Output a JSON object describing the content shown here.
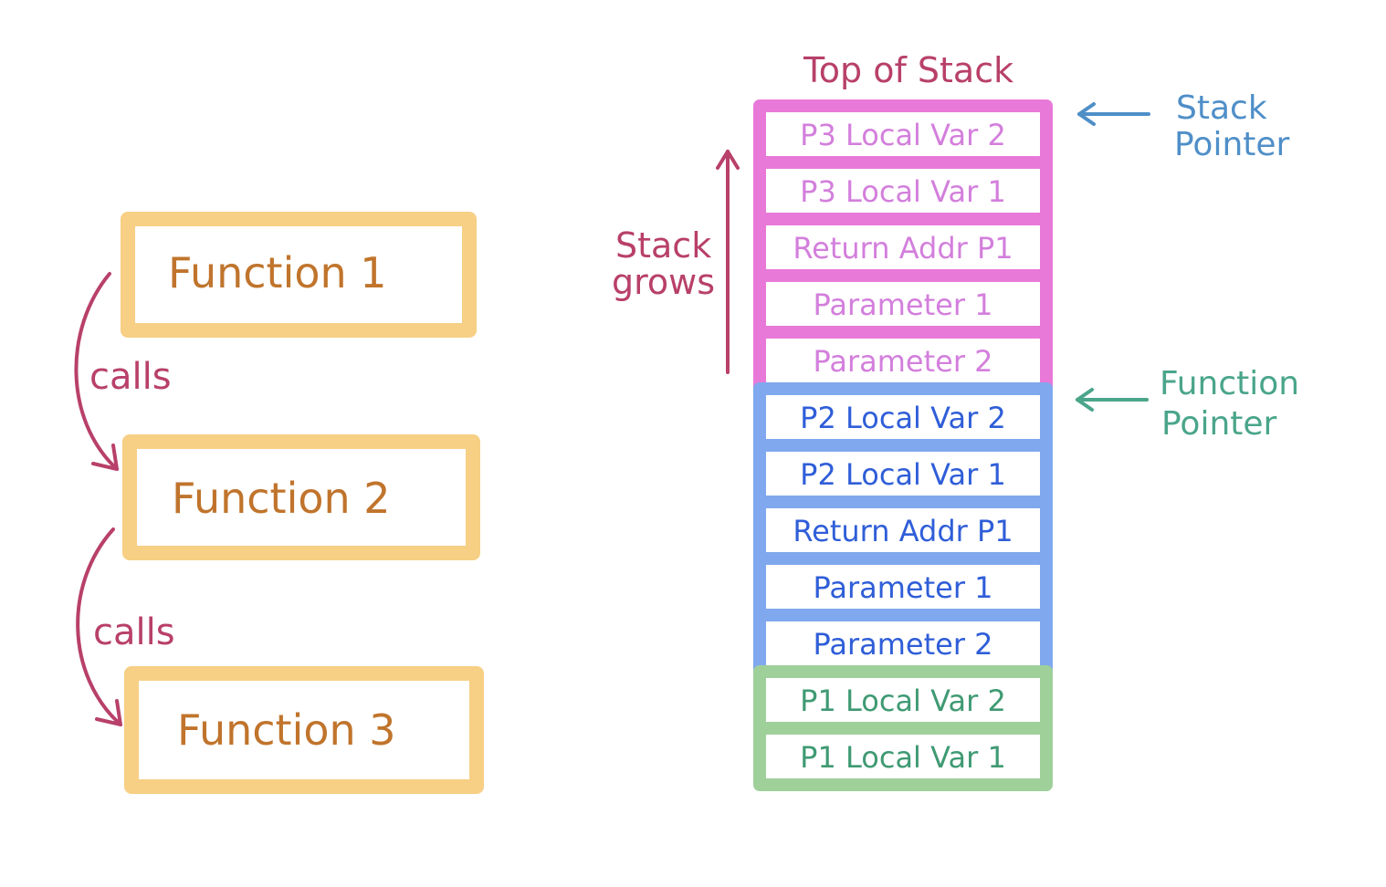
{
  "functions": [
    {
      "label": "Function 1"
    },
    {
      "label": "Function 2"
    },
    {
      "label": "Function 3"
    }
  ],
  "calls": [
    {
      "label": "calls"
    },
    {
      "label": "calls"
    }
  ],
  "stack": {
    "top_label": "Top of Stack",
    "grows_label": [
      "Stack",
      "grows"
    ],
    "frames": [
      {
        "color": "#e879d8",
        "text_color": "#d37fdc",
        "cells": [
          "P3 Local Var 2",
          "P3 Local Var 1",
          "Return Addr P1",
          "Parameter 1",
          "Parameter 2"
        ]
      },
      {
        "color": "#7fa8ee",
        "text_color": "#2f5ed8",
        "cells": [
          "P2 Local Var 2",
          "P2 Local Var 1",
          "Return Addr P1",
          "Parameter 1",
          "Parameter 2"
        ]
      },
      {
        "color": "#9fd09a",
        "text_color": "#3f9a73",
        "cells": [
          "P1 Local Var 2",
          "P1 Local Var 1"
        ]
      }
    ]
  },
  "pointers": [
    {
      "lines": [
        "Stack",
        "Pointer"
      ],
      "color": "#4f8fc8"
    },
    {
      "lines": [
        "Function",
        "Pointer"
      ],
      "color": "#4aa58a"
    }
  ],
  "colors": {
    "function_box": "#f7cf85",
    "function_text": "#c0742c",
    "calls_arrow": "#b8406a",
    "title": "#b8406a"
  }
}
